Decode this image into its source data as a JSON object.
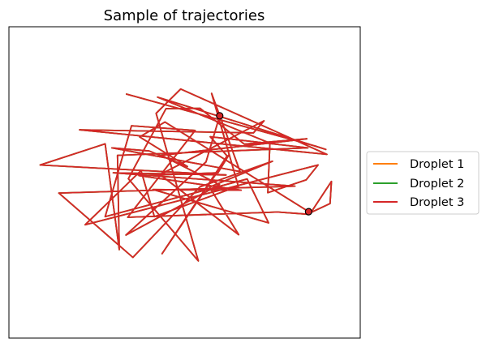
{
  "chart_data": {
    "type": "line",
    "title": "Sample of trajectories",
    "xlabel": "",
    "ylabel": "",
    "xlim": [
      0,
      100
    ],
    "ylim": [
      0,
      100
    ],
    "ticks": "none",
    "grid": false,
    "legend": "outside-right",
    "series": [
      {
        "name": "Droplet 1",
        "color": "#ff7f0e",
        "x": [
          60.0,
          56.1,
          33.3,
          59.9,
          43.4,
          84.8,
          67.0,
          54.4,
          44.7,
          34.0,
          53.9,
          41.9,
          48.9,
          90.5,
          20.1,
          69.6,
          72.6,
          43.0,
          65.4,
          57.1,
          75.0,
          54.4,
          35.3,
          14.2,
          81.4,
          29.7,
          61.8,
          8.9,
          27.4,
          31.4,
          30.9,
          85.1,
          57.3,
          62.1,
          43.6,
          62.7,
          59.5,
          37.0,
          66.1,
          41.0,
          73.9,
          67.8,
          27.4,
          34.9,
          53.0,
          33.8,
          76.5,
          84.9,
          91.4,
          91.8,
          85.9,
          44.4,
          37.2,
          50.8,
          39.9,
          29.3,
          65.8,
          57.7,
          65.3,
          41.4,
          37.6,
          21.7,
          88.0,
          84.6,
          73.7,
          74.3,
          42.3,
          90.2,
          87.2,
          33.3
        ],
        "y": [
          71.4,
          56.6,
          33.1,
          49.3,
          58.7,
          64.0,
          62.3,
          73.8,
          73.7,
          51.2,
          24.8,
          72.2,
          80.0,
          59.0,
          66.9,
          65.9,
          69.8,
          52.5,
          33.2,
          48.5,
          56.8,
          48.6,
          25.9,
          46.6,
          48.8,
          53.1,
          52.4,
          55.6,
          62.4,
          28.4,
          58.7,
          61.1,
          64.7,
          58.5,
          27.1,
          59.0,
          53.1,
          52.2,
          47.5,
          47.7,
          37.0,
          51.1,
          39.0,
          68.2,
          66.7,
          38.8,
          40.5,
          39.8,
          43.2,
          50.3,
          40.2,
          69.4,
          64.6,
          55.1,
          60.1,
          61.1,
          53.5,
          78.6,
          48.8,
          39.0,
          53.8,
          36.4,
          55.6,
          50.8,
          46.7,
          62.6,
          77.4,
          60.6,
          61.7,
          78.4
        ]
      },
      {
        "name": "Droplet 2",
        "color": "#2ca02c",
        "x": [
          60.0,
          56.1,
          33.3,
          59.9,
          43.4,
          84.8,
          67.0,
          54.4,
          44.7,
          34.0,
          53.9,
          41.9,
          48.9,
          90.5,
          20.1,
          69.6,
          72.6,
          43.0,
          65.4,
          57.1,
          75.0,
          54.4,
          35.3,
          14.2,
          81.4,
          29.7,
          61.8,
          8.9,
          27.4,
          31.4,
          30.9,
          85.1,
          57.3,
          62.1,
          43.6,
          62.7,
          59.5,
          37.0,
          66.1,
          41.0,
          73.9,
          67.8,
          27.4,
          34.9,
          53.0,
          33.8,
          76.5,
          84.9,
          91.4,
          91.8,
          85.9,
          44.4,
          37.2,
          50.8,
          39.9,
          29.3,
          65.8,
          57.7,
          65.3,
          41.4,
          37.6,
          21.7,
          88.0,
          84.6,
          73.7,
          74.3,
          42.3,
          90.2,
          87.2,
          33.3
        ],
        "y": [
          71.4,
          56.6,
          33.1,
          49.3,
          58.7,
          64.0,
          62.3,
          73.8,
          73.7,
          51.2,
          24.8,
          72.2,
          80.0,
          59.0,
          66.9,
          65.9,
          69.8,
          52.5,
          33.2,
          48.5,
          56.8,
          48.6,
          25.9,
          46.6,
          48.8,
          53.1,
          52.4,
          55.6,
          62.4,
          28.4,
          58.7,
          61.1,
          64.7,
          58.5,
          27.1,
          59.0,
          53.1,
          52.2,
          47.5,
          47.7,
          37.0,
          51.1,
          39.0,
          68.2,
          66.7,
          38.8,
          40.5,
          39.8,
          43.2,
          50.3,
          40.2,
          69.4,
          64.6,
          55.1,
          60.1,
          61.1,
          53.5,
          78.6,
          48.8,
          39.0,
          53.8,
          36.4,
          55.6,
          50.8,
          46.7,
          62.6,
          77.4,
          60.6,
          61.7,
          78.4
        ]
      },
      {
        "name": "Droplet 3",
        "color": "#d62728",
        "x": [
          60.0,
          56.1,
          33.3,
          59.9,
          43.4,
          84.8,
          67.0,
          54.4,
          44.7,
          34.0,
          53.9,
          41.9,
          48.9,
          90.5,
          20.1,
          69.6,
          72.6,
          43.0,
          65.4,
          57.1,
          75.0,
          54.4,
          35.3,
          14.2,
          81.4,
          29.7,
          61.8,
          8.9,
          27.4,
          31.4,
          30.9,
          85.1,
          57.3,
          62.1,
          43.6,
          62.7,
          59.5,
          37.0,
          66.1,
          41.0,
          73.9,
          67.8,
          27.4,
          34.9,
          53.0,
          33.8,
          76.5,
          84.9,
          91.4,
          91.8,
          85.9,
          44.4,
          37.2,
          50.8,
          39.9,
          29.3,
          65.8,
          57.7,
          65.3,
          41.4,
          37.6,
          21.7,
          88.0,
          84.6,
          73.7,
          74.3,
          42.3,
          90.2,
          87.2,
          33.3
        ],
        "y": [
          71.4,
          56.6,
          33.1,
          49.3,
          58.7,
          64.0,
          62.3,
          73.8,
          73.7,
          51.2,
          24.8,
          72.2,
          80.0,
          59.0,
          66.9,
          65.9,
          69.8,
          52.5,
          33.2,
          48.5,
          56.8,
          48.6,
          25.9,
          46.6,
          48.8,
          53.1,
          52.4,
          55.6,
          62.4,
          28.4,
          58.7,
          61.1,
          64.7,
          58.5,
          27.1,
          59.0,
          53.1,
          52.2,
          47.5,
          47.7,
          37.0,
          51.1,
          39.0,
          68.2,
          66.7,
          38.8,
          40.5,
          39.8,
          43.2,
          50.3,
          40.2,
          69.4,
          64.6,
          55.1,
          60.1,
          61.1,
          53.5,
          78.6,
          48.8,
          39.0,
          53.8,
          36.4,
          55.6,
          50.8,
          46.7,
          62.6,
          77.4,
          60.6,
          61.7,
          78.4
        ]
      }
    ],
    "markers": [
      {
        "x": 60.0,
        "y": 71.4,
        "fill": "#d62728",
        "edge": "#000000"
      },
      {
        "x": 85.3,
        "y": 40.6,
        "fill": "#d62728",
        "edge": "#000000"
      }
    ]
  }
}
